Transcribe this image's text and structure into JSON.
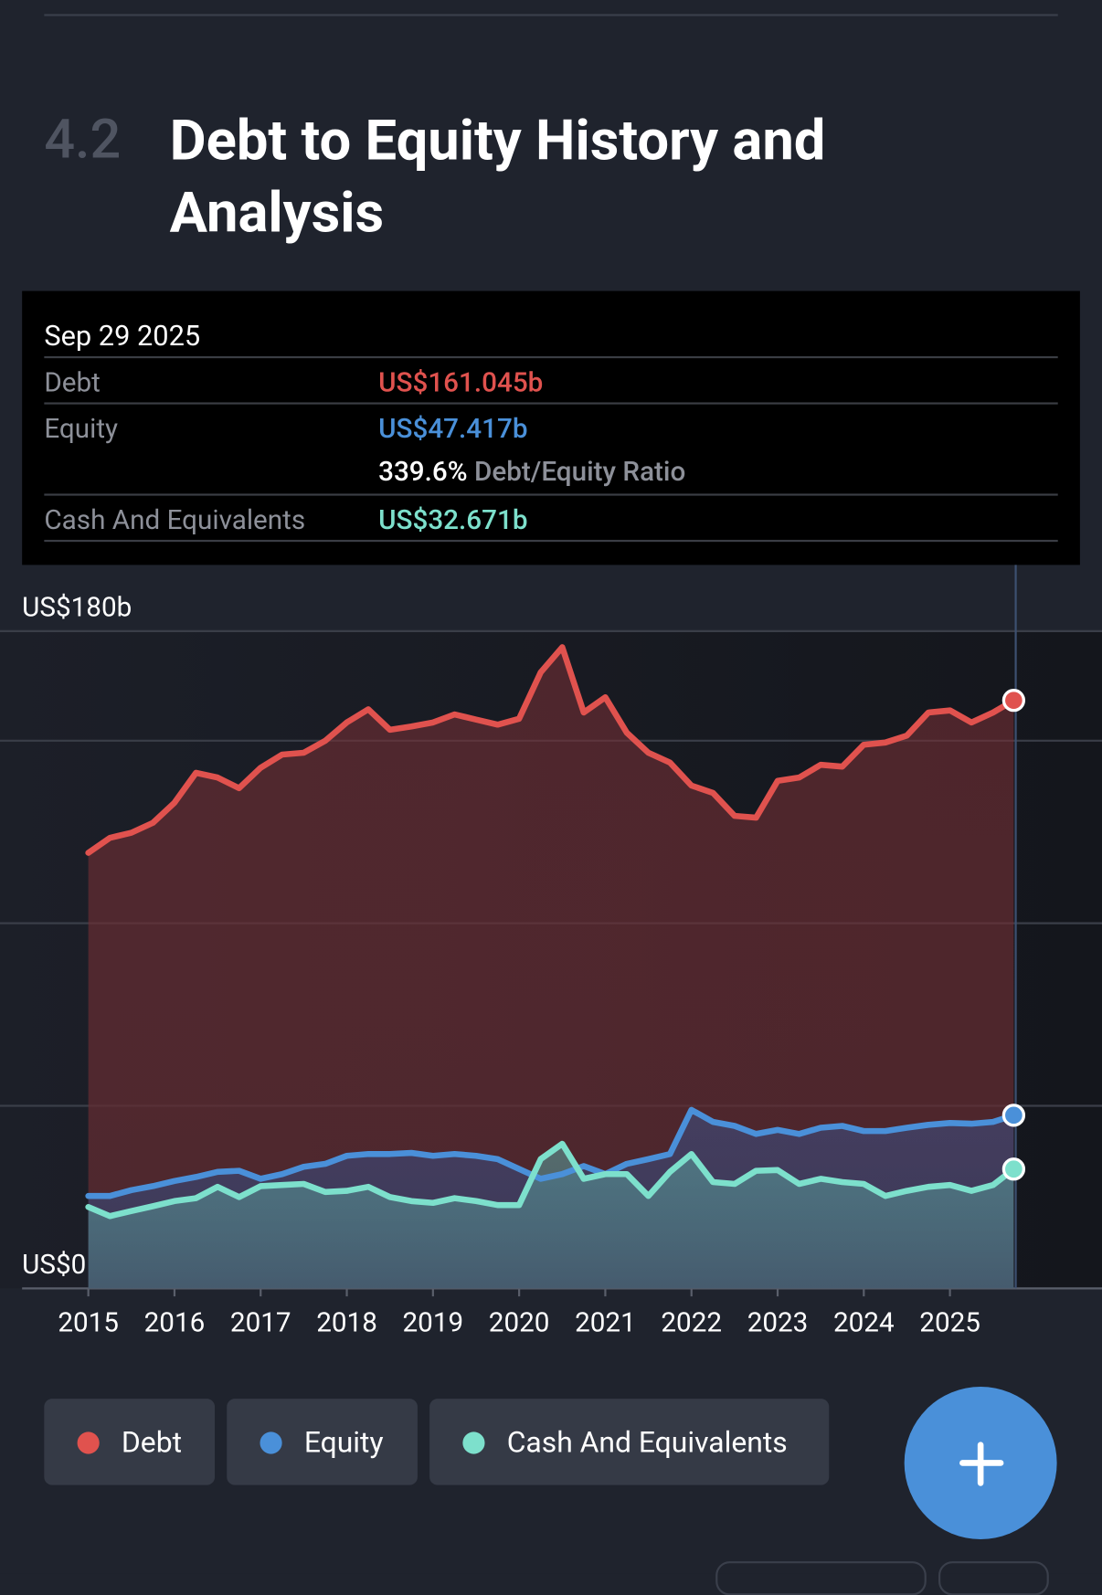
{
  "header": {
    "section": "4.2",
    "title": "Debt to Equity History and Analysis"
  },
  "tooltip": {
    "date": "Sep 29 2025",
    "rows": [
      {
        "label": "Debt",
        "value": "US$161.045b"
      },
      {
        "label": "Equity",
        "value": "US$47.417b"
      },
      {
        "label": "Cash And Equivalents",
        "value": "US$32.671b"
      }
    ],
    "ratio": "339.6%",
    "ratio_label": "Debt/Equity Ratio"
  },
  "chart_data": {
    "type": "area",
    "x": [
      2015,
      2015.25,
      2015.5,
      2015.75,
      2016,
      2016.25,
      2016.5,
      2016.75,
      2017,
      2017.25,
      2017.5,
      2017.75,
      2018,
      2018.25,
      2018.5,
      2018.75,
      2019,
      2019.25,
      2019.5,
      2019.75,
      2020,
      2020.25,
      2020.5,
      2020.75,
      2021,
      2021.25,
      2021.5,
      2021.75,
      2022,
      2022.25,
      2022.5,
      2022.75,
      2023,
      2023.25,
      2023.5,
      2023.75,
      2024,
      2024.25,
      2024.5,
      2024.75,
      2025,
      2025.25,
      2025.5,
      2025.74
    ],
    "series": [
      {
        "name": "Debt",
        "color": "#e0524e",
        "values": [
          119.3,
          123.4,
          124.8,
          127.5,
          133,
          141.2,
          139.9,
          137,
          142.6,
          146.2,
          146.7,
          150,
          155,
          158.6,
          153,
          153.9,
          155,
          157.2,
          155.8,
          154.4,
          156,
          168.7,
          175.6,
          157.7,
          161.9,
          152.2,
          146.7,
          144,
          137.7,
          135.7,
          129.4,
          128.9,
          139,
          139.9,
          143.4,
          142.9,
          148.9,
          149.5,
          151.4,
          157.7,
          158.3,
          155,
          157.7,
          161.045
        ]
      },
      {
        "name": "Equity",
        "color": "#4a90d9",
        "values": [
          25.3,
          25.3,
          26.9,
          28,
          29.4,
          30.5,
          31.9,
          32.2,
          30,
          31.3,
          33.3,
          34.1,
          36.3,
          36.8,
          36.8,
          37.1,
          36.3,
          36.8,
          36.3,
          35.4,
          32.7,
          30,
          31.3,
          33.5,
          31.3,
          34.1,
          35.4,
          36.8,
          48.9,
          45.6,
          44.5,
          42.3,
          43.4,
          42.3,
          44,
          44.5,
          43.1,
          43.1,
          44,
          44.8,
          45.3,
          45.1,
          45.6,
          47.417
        ]
      },
      {
        "name": "Cash And Equivalents",
        "color": "#7de0cc",
        "values": [
          22.3,
          19.8,
          21.2,
          22.5,
          23.9,
          24.7,
          27.8,
          25,
          28,
          28.3,
          28.6,
          26.4,
          26.7,
          27.8,
          25,
          23.9,
          23.4,
          24.7,
          23.9,
          22.8,
          22.8,
          35.4,
          39.6,
          30,
          31.3,
          31.3,
          25.3,
          31.9,
          36.8,
          29.1,
          28.6,
          32.2,
          32.4,
          28.6,
          30,
          29.1,
          28.6,
          25.3,
          26.7,
          27.8,
          28.3,
          26.7,
          28.3,
          32.671
        ]
      }
    ],
    "xlim": [
      2015,
      2025.74
    ],
    "xticks": [
      2015,
      2016,
      2017,
      2018,
      2019,
      2020,
      2021,
      2022,
      2023,
      2024,
      2025
    ],
    "ylim": [
      0,
      180
    ],
    "yticks": [
      {
        "value": 0,
        "label": "US$0"
      },
      {
        "value": 180,
        "label": "US$180b"
      }
    ],
    "gridlines": [
      50,
      100,
      150
    ],
    "grid": true
  }
}
